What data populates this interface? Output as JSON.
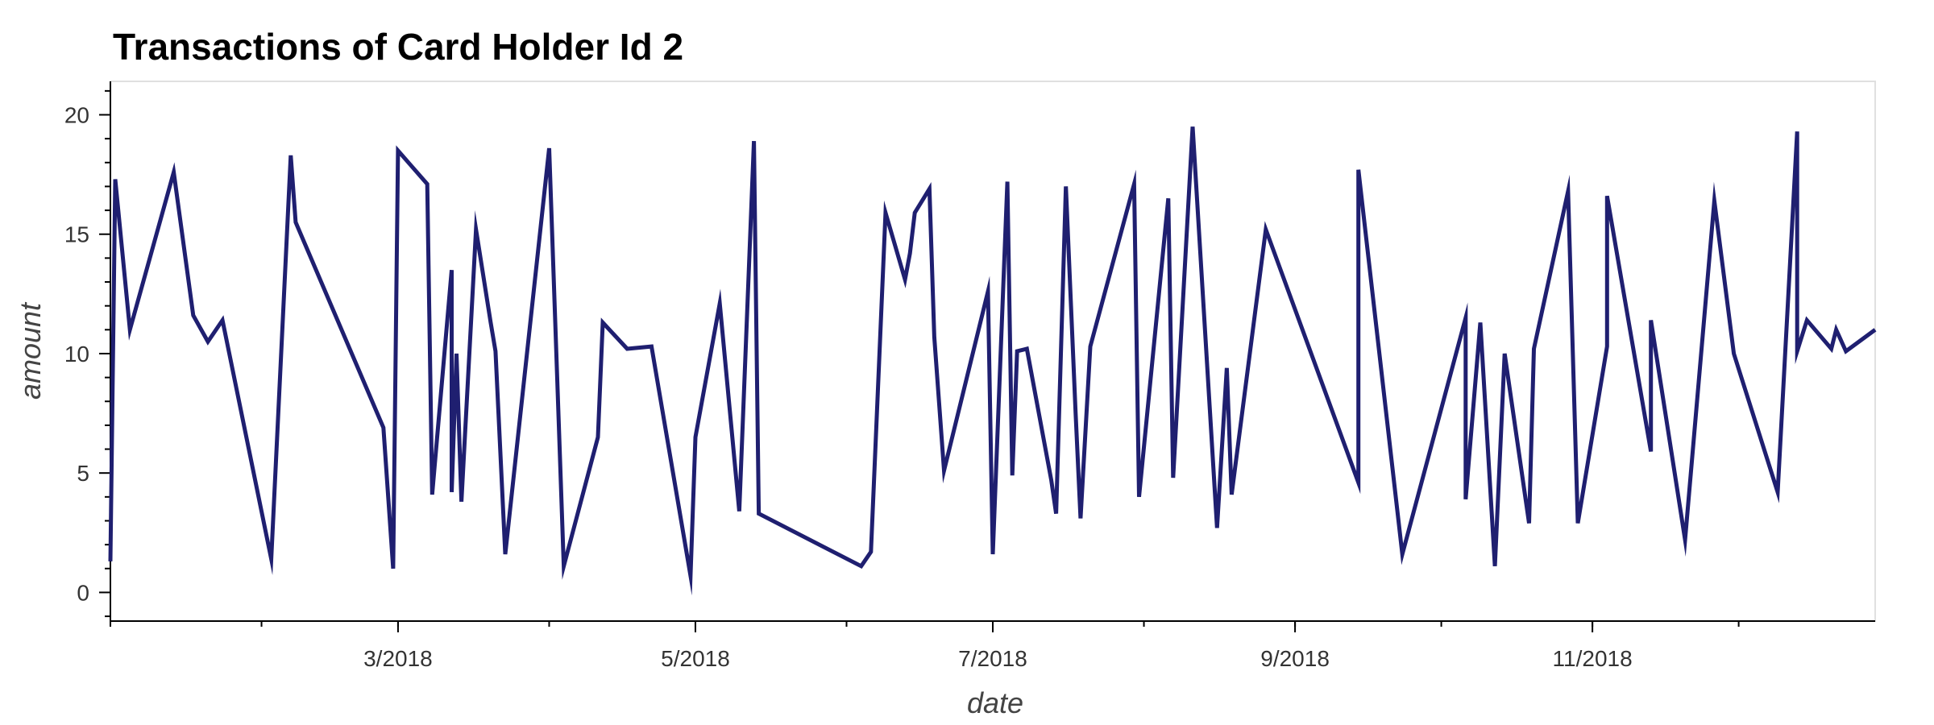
{
  "chart_data": {
    "type": "line",
    "title": "Transactions of Card Holder Id 2",
    "xlabel": "date",
    "ylabel": "amount",
    "ylim": [
      -1.2,
      21.4
    ],
    "xlim": [
      "2018-01-01",
      "2018-12-29"
    ],
    "y_ticks": [
      0,
      5,
      10,
      15,
      20
    ],
    "x_ticks": [
      {
        "date": "2018-03-01",
        "label": "3/2018"
      },
      {
        "date": "2018-05-01",
        "label": "5/2018"
      },
      {
        "date": "2018-07-01",
        "label": "7/2018"
      },
      {
        "date": "2018-09-01",
        "label": "9/2018"
      },
      {
        "date": "2018-11-01",
        "label": "11/2018"
      }
    ],
    "grid": false,
    "color": "#1f1f70",
    "series": [
      {
        "x": [
          "2018-01-01",
          "2018-01-02",
          "2018-01-05",
          "2018-01-14",
          "2018-01-18",
          "2018-01-21",
          "2018-01-24",
          "2018-02-03",
          "2018-02-07",
          "2018-02-08",
          "2018-02-26",
          "2018-02-28",
          "2018-03-01",
          "2018-03-07",
          "2018-03-08",
          "2018-03-12",
          "2018-03-12",
          "2018-03-13",
          "2018-03-14",
          "2018-03-17",
          "2018-03-20",
          "2018-03-21",
          "2018-03-23",
          "2018-04-01",
          "2018-04-04",
          "2018-04-11",
          "2018-04-12",
          "2018-04-17",
          "2018-04-22",
          "2018-04-30",
          "2018-05-01",
          "2018-05-06",
          "2018-05-10",
          "2018-05-13",
          "2018-05-14",
          "2018-06-04",
          "2018-06-06",
          "2018-06-09",
          "2018-06-13",
          "2018-06-14",
          "2018-06-15",
          "2018-06-18",
          "2018-06-19",
          "2018-06-21",
          "2018-06-30",
          "2018-07-01",
          "2018-07-04",
          "2018-07-05",
          "2018-07-06",
          "2018-07-08",
          "2018-07-13",
          "2018-07-14",
          "2018-07-16",
          "2018-07-18",
          "2018-07-19",
          "2018-07-21",
          "2018-07-30",
          "2018-07-31",
          "2018-08-06",
          "2018-08-07",
          "2018-08-11",
          "2018-08-16",
          "2018-08-18",
          "2018-08-19",
          "2018-08-26",
          "2018-09-14",
          "2018-09-14",
          "2018-09-23",
          "2018-10-06",
          "2018-10-06",
          "2018-10-09",
          "2018-10-12",
          "2018-10-14",
          "2018-10-19",
          "2018-10-20",
          "2018-10-27",
          "2018-10-29",
          "2018-11-04",
          "2018-11-04",
          "2018-11-13",
          "2018-11-13",
          "2018-11-20",
          "2018-11-26",
          "2018-11-30",
          "2018-12-09",
          "2018-12-13",
          "2018-12-13",
          "2018-12-15",
          "2018-12-20",
          "2018-12-21",
          "2018-12-23",
          "2018-12-29"
        ],
        "y": [
          1.3,
          17.3,
          11.0,
          17.6,
          11.6,
          10.5,
          11.4,
          1.4,
          18.3,
          15.5,
          6.9,
          1.0,
          18.5,
          17.1,
          4.1,
          13.5,
          4.2,
          10.0,
          3.8,
          15.2,
          11.3,
          10.1,
          1.6,
          18.6,
          1.1,
          6.5,
          11.3,
          10.2,
          10.3,
          0.7,
          6.5,
          12.1,
          3.4,
          18.9,
          3.3,
          1.1,
          1.7,
          15.9,
          13.1,
          14.2,
          15.9,
          16.9,
          10.7,
          5.1,
          12.6,
          1.6,
          17.2,
          4.9,
          10.1,
          10.2,
          4.7,
          3.3,
          17.0,
          7.5,
          3.1,
          10.3,
          17.1,
          4.0,
          16.5,
          4.8,
          19.5,
          2.7,
          9.4,
          4.1,
          15.2,
          4.6,
          17.7,
          1.6,
          11.5,
          3.9,
          11.3,
          1.1,
          10.0,
          2.9,
          10.2,
          16.8,
          2.9,
          10.3,
          16.6,
          5.9,
          11.4,
          2.2,
          16.4,
          10.0,
          4.2,
          19.3,
          10.1,
          11.4,
          10.2,
          11.0,
          10.1,
          11.0
        ]
      }
    ]
  }
}
